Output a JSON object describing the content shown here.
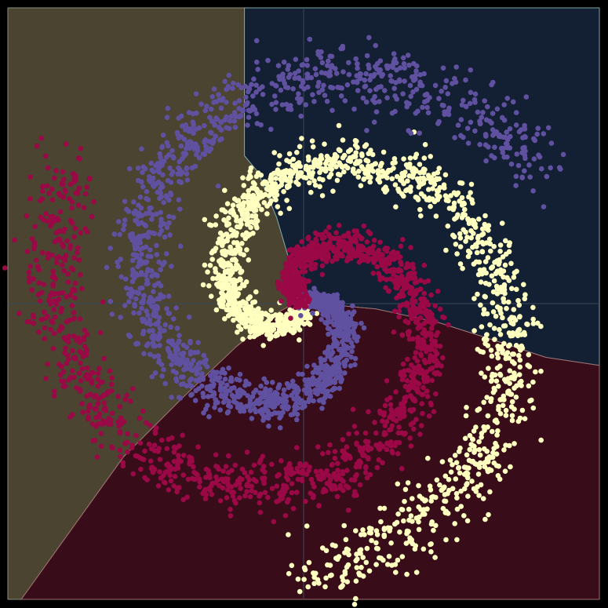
{
  "chart_data": {
    "type": "scatter",
    "title": "",
    "xlabel": "",
    "ylabel": "",
    "xlim": [
      -1.1,
      1.1
    ],
    "ylim": [
      -1.1,
      1.1
    ],
    "grid": true,
    "legend": "none",
    "background": "#000000",
    "crosshair_color": "#3a4a5a",
    "decision_regions": [
      {
        "class": "yellow",
        "color": "#4a4430",
        "boundary_color": "#8a8f7a",
        "polygon": [
          [
            -1.1,
            1.1
          ],
          [
            -0.22,
            1.1
          ],
          [
            -0.22,
            0.55
          ],
          [
            -0.17,
            0.49
          ],
          [
            -0.1,
            0.32
          ],
          [
            -0.05,
            0.15
          ],
          [
            0.0,
            0.02
          ],
          [
            -0.09,
            -0.03
          ],
          [
            -0.25,
            -0.16
          ],
          [
            -0.45,
            -0.35
          ],
          [
            -0.67,
            -0.57
          ],
          [
            -1.05,
            -1.1
          ],
          [
            -1.1,
            -1.1
          ]
        ]
      },
      {
        "class": "purple",
        "color": "#131f33",
        "boundary_color": "#7da6a6",
        "polygon": [
          [
            -0.22,
            1.1
          ],
          [
            1.1,
            1.1
          ],
          [
            1.1,
            -0.23
          ],
          [
            0.9,
            -0.2
          ],
          [
            0.72,
            -0.14
          ],
          [
            0.5,
            -0.07
          ],
          [
            0.27,
            -0.02
          ],
          [
            0.16,
            -0.01
          ],
          [
            0.0,
            0.02
          ],
          [
            -0.05,
            0.15
          ],
          [
            -0.1,
            0.32
          ],
          [
            -0.17,
            0.49
          ],
          [
            -0.22,
            0.55
          ]
        ]
      },
      {
        "class": "red",
        "color": "#380c18",
        "boundary_color": "#a07070",
        "polygon": [
          [
            0.0,
            0.02
          ],
          [
            0.16,
            -0.01
          ],
          [
            0.27,
            -0.02
          ],
          [
            0.5,
            -0.07
          ],
          [
            0.72,
            -0.14
          ],
          [
            0.9,
            -0.2
          ],
          [
            1.1,
            -0.23
          ],
          [
            1.1,
            -1.1
          ],
          [
            -1.05,
            -1.1
          ],
          [
            -0.67,
            -0.57
          ],
          [
            -0.45,
            -0.35
          ],
          [
            -0.25,
            -0.16
          ],
          [
            -0.09,
            -0.03
          ]
        ]
      }
    ],
    "series": [
      {
        "class": "yellow",
        "color": "#ffffc0",
        "spiral_start_deg": 270,
        "arc_deg": 360,
        "max_radius": 1.0,
        "points": 1600
      },
      {
        "class": "purple",
        "color": "#6050a0",
        "spiral_start_deg": 30,
        "arc_deg": 360,
        "max_radius": 1.0,
        "points": 1600
      },
      {
        "class": "red",
        "color": "#9a0846",
        "spiral_start_deg": 150,
        "arc_deg": 360,
        "max_radius": 1.0,
        "points": 1600
      }
    ]
  }
}
